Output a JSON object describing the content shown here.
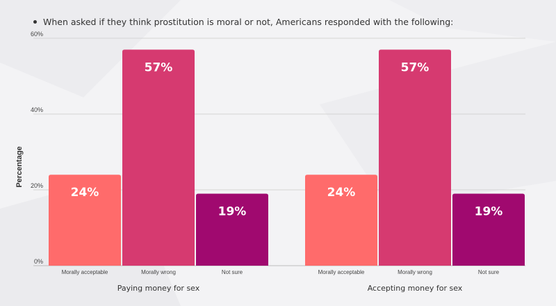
{
  "headline": "When asked if they think prostitution is moral or not, Americans responded with the following:",
  "chart_data": {
    "type": "bar",
    "ylabel": "Percentage",
    "ylim": [
      0,
      60
    ],
    "yticks": [
      "0%",
      "20%",
      "40%",
      "60%"
    ],
    "ytick_values": [
      0,
      20,
      40,
      60
    ],
    "grid": true,
    "categories": [
      "Morally acceptable",
      "Morally wrong",
      "Not sure"
    ],
    "groups": [
      {
        "label": "Paying money for sex",
        "values": [
          24,
          57,
          19
        ],
        "value_labels": [
          "24%",
          "57%",
          "19%"
        ]
      },
      {
        "label": "Accepting money for sex",
        "values": [
          24,
          57,
          19
        ],
        "value_labels": [
          "24%",
          "57%",
          "19%"
        ]
      }
    ],
    "colors": [
      "#ff6b6b",
      "#d63a70",
      "#a0096f"
    ]
  }
}
